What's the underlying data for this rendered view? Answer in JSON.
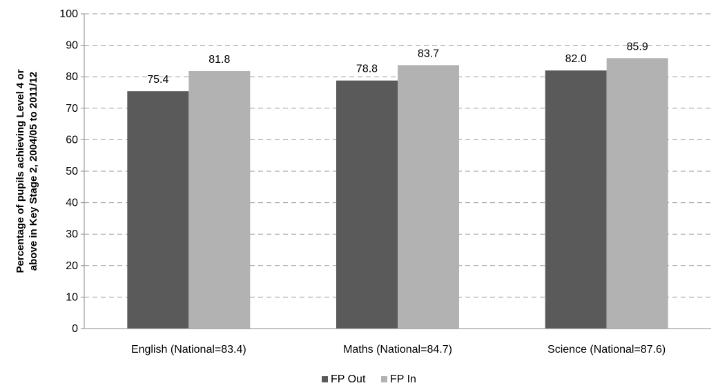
{
  "chart_data": {
    "type": "bar",
    "categories": [
      "English (National=83.4)",
      "Maths (National=84.7)",
      "Science (National=87.6)"
    ],
    "series": [
      {
        "name": "FP Out",
        "color": "#5a5a5a",
        "values": [
          75.4,
          78.8,
          82.0
        ],
        "labels": [
          "75.4",
          "78.8",
          "82.0"
        ]
      },
      {
        "name": "FP In",
        "color": "#b2b2b2",
        "values": [
          81.8,
          83.7,
          85.9
        ],
        "labels": [
          "81.8",
          "83.7",
          "85.9"
        ]
      }
    ],
    "ylabel_lines": [
      "Percentage of pupils achieving Level 4 or",
      "above in Key Stage 2, 2004/05 to 2011/12"
    ],
    "ylim": [
      0,
      100
    ],
    "yticks": [
      "0",
      "10",
      "20",
      "30",
      "40",
      "50",
      "60",
      "70",
      "80",
      "90",
      "100"
    ],
    "grid": "dashed horizontal",
    "legend_position": "bottom-center"
  }
}
